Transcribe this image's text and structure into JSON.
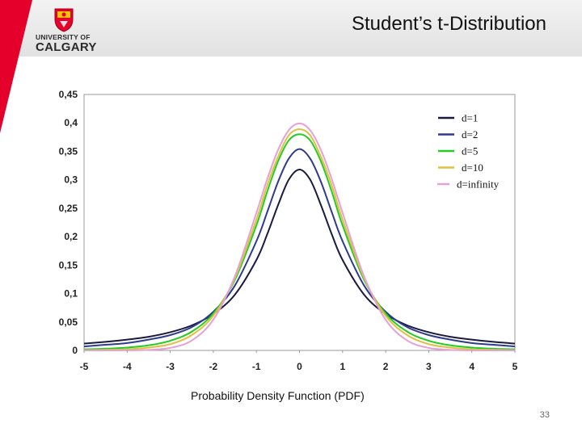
{
  "slide": {
    "title": "Student’s t-Distribution",
    "caption": "Probability Density Function (PDF)",
    "page_number": "33",
    "logo": {
      "line1": "UNIVERSITY OF",
      "line2": "CALGARY",
      "icon": "university-crest-icon"
    },
    "colors": {
      "header_bg": "#e6e6e6",
      "accent_red": "#e4002b"
    }
  },
  "chart_data": {
    "type": "line",
    "title": "",
    "xlabel": "",
    "ylabel": "",
    "xlim": [
      -5,
      5
    ],
    "ylim": [
      0,
      0.45
    ],
    "x_ticks": [
      "-5",
      "-4",
      "-3",
      "-2",
      "-1",
      "0",
      "1",
      "2",
      "3",
      "4",
      "5"
    ],
    "y_ticks": [
      "0",
      "0,05",
      "0,1",
      "0,15",
      "0,2",
      "0,25",
      "0,3",
      "0,35",
      "0,4",
      "0,45"
    ],
    "grid": false,
    "legend_position": "top-right",
    "x": [
      -5,
      -4.5,
      -4,
      -3.5,
      -3,
      -2.5,
      -2,
      -1.5,
      -1,
      -0.75,
      -0.5,
      -0.25,
      0,
      0.25,
      0.5,
      0.75,
      1,
      1.5,
      2,
      2.5,
      3,
      3.5,
      4,
      4.5,
      5
    ],
    "series": [
      {
        "name": "d=1",
        "color": "#1a1a40",
        "values": [
          0.012,
          0.015,
          0.019,
          0.024,
          0.032,
          0.044,
          0.064,
          0.098,
          0.159,
          0.204,
          0.255,
          0.3,
          0.318,
          0.3,
          0.255,
          0.204,
          0.159,
          0.098,
          0.064,
          0.044,
          0.032,
          0.024,
          0.019,
          0.015,
          0.012
        ]
      },
      {
        "name": "d=2",
        "color": "#2e3a8c",
        "values": [
          0.007,
          0.01,
          0.013,
          0.019,
          0.027,
          0.041,
          0.068,
          0.114,
          0.192,
          0.243,
          0.296,
          0.337,
          0.354,
          0.337,
          0.296,
          0.243,
          0.192,
          0.114,
          0.068,
          0.041,
          0.027,
          0.019,
          0.013,
          0.01,
          0.007
        ]
      },
      {
        "name": "d=5",
        "color": "#22cc22",
        "values": [
          0.002,
          0.003,
          0.005,
          0.009,
          0.017,
          0.033,
          0.065,
          0.124,
          0.22,
          0.279,
          0.332,
          0.369,
          0.38,
          0.369,
          0.332,
          0.279,
          0.22,
          0.124,
          0.065,
          0.033,
          0.017,
          0.009,
          0.005,
          0.003,
          0.002
        ]
      },
      {
        "name": "d=10",
        "color": "#e0c040",
        "values": [
          0.0004,
          0.001,
          0.002,
          0.005,
          0.011,
          0.027,
          0.061,
          0.127,
          0.23,
          0.29,
          0.34,
          0.378,
          0.389,
          0.378,
          0.34,
          0.29,
          0.23,
          0.127,
          0.061,
          0.027,
          0.011,
          0.005,
          0.002,
          0.001,
          0.0004
        ]
      },
      {
        "name": "d=infinity",
        "color": "#e6a0d8",
        "values": [
          1.5e-06,
          1.6e-05,
          0.00013,
          0.0009,
          0.0044,
          0.0175,
          0.054,
          0.13,
          0.242,
          0.301,
          0.352,
          0.387,
          0.399,
          0.387,
          0.352,
          0.301,
          0.242,
          0.13,
          0.054,
          0.0175,
          0.0044,
          0.0009,
          0.00013,
          1.6e-05,
          1.5e-06
        ]
      }
    ]
  }
}
